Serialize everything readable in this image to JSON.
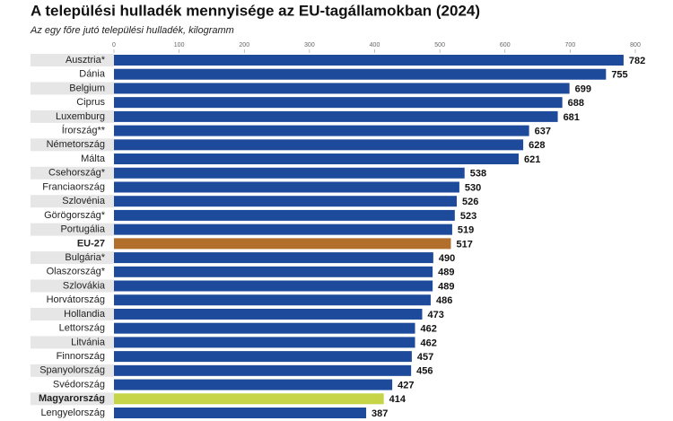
{
  "chart_data": {
    "type": "bar",
    "orientation": "horizontal",
    "title": "A települési hulladék mennyisége az EU-tagállamokban (2024)",
    "subtitle": "Az egy főre jutó települési hulladék, kilogramm",
    "categories": [
      "Ausztria*",
      "Dánia",
      "Belgium",
      "Ciprus",
      "Luxemburg",
      "Írország**",
      "Németország",
      "Málta",
      "Csehország*",
      "Franciaország",
      "Szlovénia",
      "Görögország*",
      "Portugália",
      "EU-27",
      "Bulgária*",
      "Olaszország*",
      "Szlovákia",
      "Horvátország",
      "Hollandia",
      "Lettország",
      "Litvánia",
      "Finnország",
      "Spanyolország",
      "Svédország",
      "Magyarország",
      "Lengyelország"
    ],
    "values": [
      782,
      755,
      699,
      688,
      681,
      637,
      628,
      621,
      538,
      530,
      526,
      523,
      519,
      517,
      490,
      489,
      489,
      486,
      473,
      462,
      462,
      457,
      456,
      427,
      414,
      387
    ],
    "colors": [
      "#1d4a9b",
      "#1d4a9b",
      "#1d4a9b",
      "#1d4a9b",
      "#1d4a9b",
      "#1d4a9b",
      "#1d4a9b",
      "#1d4a9b",
      "#1d4a9b",
      "#1d4a9b",
      "#1d4a9b",
      "#1d4a9b",
      "#1d4a9b",
      "#b26f2c",
      "#1d4a9b",
      "#1d4a9b",
      "#1d4a9b",
      "#1d4a9b",
      "#1d4a9b",
      "#1d4a9b",
      "#1d4a9b",
      "#1d4a9b",
      "#1d4a9b",
      "#1d4a9b",
      "#c6d548",
      "#1d4a9b"
    ],
    "xlim": [
      0,
      800
    ],
    "xticks": [
      0,
      100,
      200,
      300,
      400,
      500,
      600,
      700,
      800
    ],
    "grid": false
  }
}
